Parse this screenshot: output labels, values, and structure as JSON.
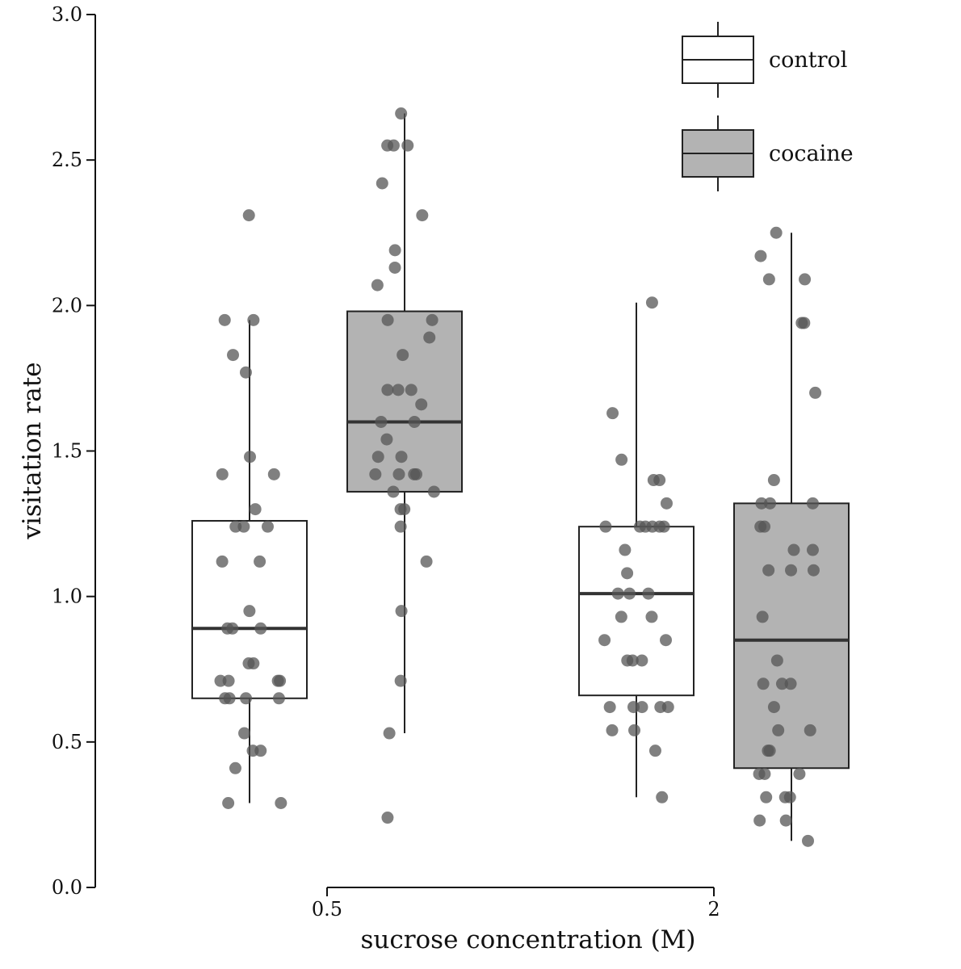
{
  "chart_data": {
    "type": "boxplot",
    "title": "",
    "xlabel": "sucrose concentration (M)",
    "ylabel": "visitation rate",
    "ylim": [
      0,
      3.0
    ],
    "yticks": [
      0.0,
      0.5,
      1.0,
      1.5,
      2.0,
      2.5,
      3.0
    ],
    "ytick_labels": [
      "0.0",
      "0.5",
      "1.0",
      "1.5",
      "2.0",
      "2.5",
      "3.0"
    ],
    "categories": [
      "0.5",
      "2"
    ],
    "legend": {
      "position": "top-right",
      "entries": [
        {
          "name": "control",
          "fill": "#ffffff"
        },
        {
          "name": "cocaine",
          "fill": "#b3b3b3"
        }
      ]
    },
    "colors": {
      "axis": "#111111",
      "box_stroke": "#222222",
      "median": "#333333",
      "point": "#555555",
      "control_fill": "#ffffff",
      "cocaine_fill": "#b3b3b3"
    },
    "groups": [
      {
        "category": "0.5",
        "series": "control",
        "whisker_low": 0.29,
        "q1": 0.65,
        "median": 0.89,
        "q3": 1.26,
        "whisker_high": 1.95,
        "points": [
          2.31,
          1.95,
          1.95,
          1.83,
          1.77,
          1.48,
          1.42,
          1.42,
          1.3,
          1.24,
          1.24,
          1.24,
          1.12,
          1.12,
          0.95,
          0.89,
          0.89,
          0.89,
          0.77,
          0.77,
          0.71,
          0.71,
          0.71,
          0.71,
          0.65,
          0.65,
          0.65,
          0.65,
          0.53,
          0.47,
          0.47,
          0.41,
          0.29,
          0.29
        ]
      },
      {
        "category": "0.5",
        "series": "cocaine",
        "whisker_low": 0.53,
        "q1": 1.36,
        "median": 1.6,
        "q3": 1.98,
        "whisker_high": 2.66,
        "points": [
          2.66,
          2.55,
          2.55,
          2.55,
          2.42,
          2.31,
          2.19,
          2.13,
          2.07,
          1.95,
          1.95,
          1.89,
          1.83,
          1.71,
          1.71,
          1.71,
          1.66,
          1.6,
          1.6,
          1.54,
          1.48,
          1.48,
          1.42,
          1.42,
          1.42,
          1.42,
          1.36,
          1.36,
          1.3,
          1.3,
          1.24,
          1.12,
          0.95,
          0.71,
          0.53,
          0.24
        ]
      },
      {
        "category": "2",
        "series": "control",
        "whisker_low": 0.31,
        "q1": 0.66,
        "median": 1.01,
        "q3": 1.24,
        "whisker_high": 2.01,
        "points": [
          2.01,
          1.63,
          1.47,
          1.4,
          1.4,
          1.32,
          1.24,
          1.24,
          1.24,
          1.24,
          1.24,
          1.24,
          1.16,
          1.08,
          1.01,
          1.01,
          1.01,
          0.93,
          0.93,
          0.85,
          0.85,
          0.78,
          0.78,
          0.78,
          0.62,
          0.62,
          0.62,
          0.62,
          0.62,
          0.54,
          0.54,
          0.47,
          0.31
        ]
      },
      {
        "category": "2",
        "series": "cocaine",
        "whisker_low": 0.16,
        "q1": 0.41,
        "median": 0.85,
        "q3": 1.32,
        "whisker_high": 2.25,
        "points": [
          2.25,
          2.17,
          2.09,
          2.09,
          1.94,
          1.94,
          1.7,
          1.4,
          1.32,
          1.32,
          1.32,
          1.24,
          1.24,
          1.16,
          1.16,
          1.09,
          1.09,
          1.09,
          0.93,
          0.78,
          0.7,
          0.7,
          0.7,
          0.62,
          0.54,
          0.54,
          0.47,
          0.47,
          0.39,
          0.39,
          0.39,
          0.31,
          0.31,
          0.31,
          0.23,
          0.23,
          0.16
        ]
      }
    ]
  }
}
